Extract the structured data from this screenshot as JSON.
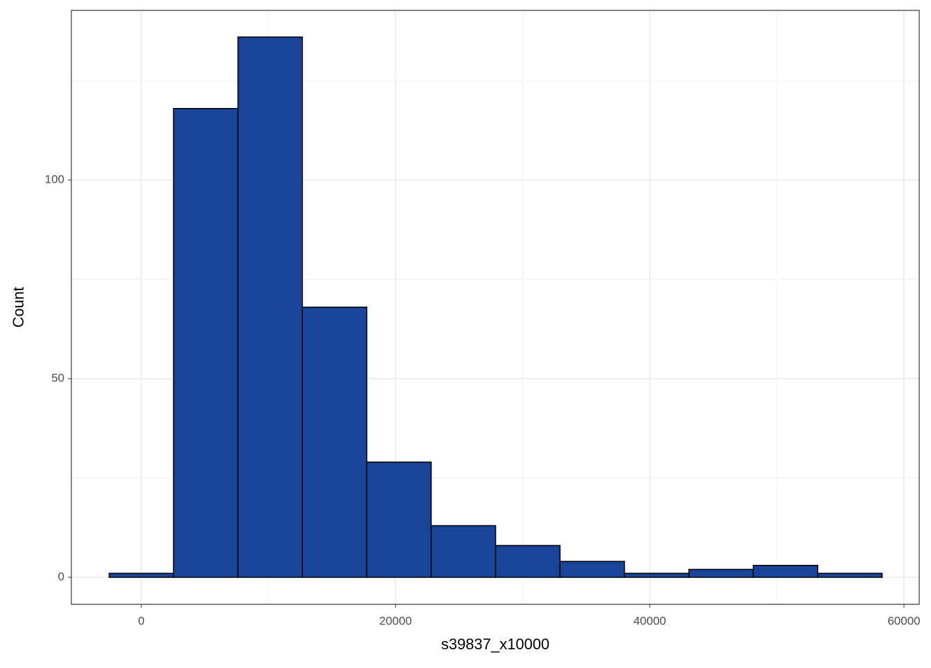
{
  "chart_data": {
    "type": "histogram",
    "x_label": "s39837_x10000",
    "y_label": "Count",
    "bins": [
      -2534,
      2534,
      7602,
      12670,
      17738,
      22806,
      27874,
      32942,
      38010,
      43078,
      48146,
      53214,
      58282
    ],
    "values": [
      1,
      118,
      136,
      68,
      29,
      13,
      8,
      4,
      1,
      2,
      3,
      1
    ],
    "color": "#1a4499",
    "edge_color": "#000000",
    "xlim": [
      -5504,
      61199
    ],
    "ylim": [
      -6.8,
      142.7
    ],
    "xticks": [
      0,
      20000,
      40000,
      60000
    ],
    "yticks": [
      0,
      50,
      100
    ],
    "grid": true
  }
}
